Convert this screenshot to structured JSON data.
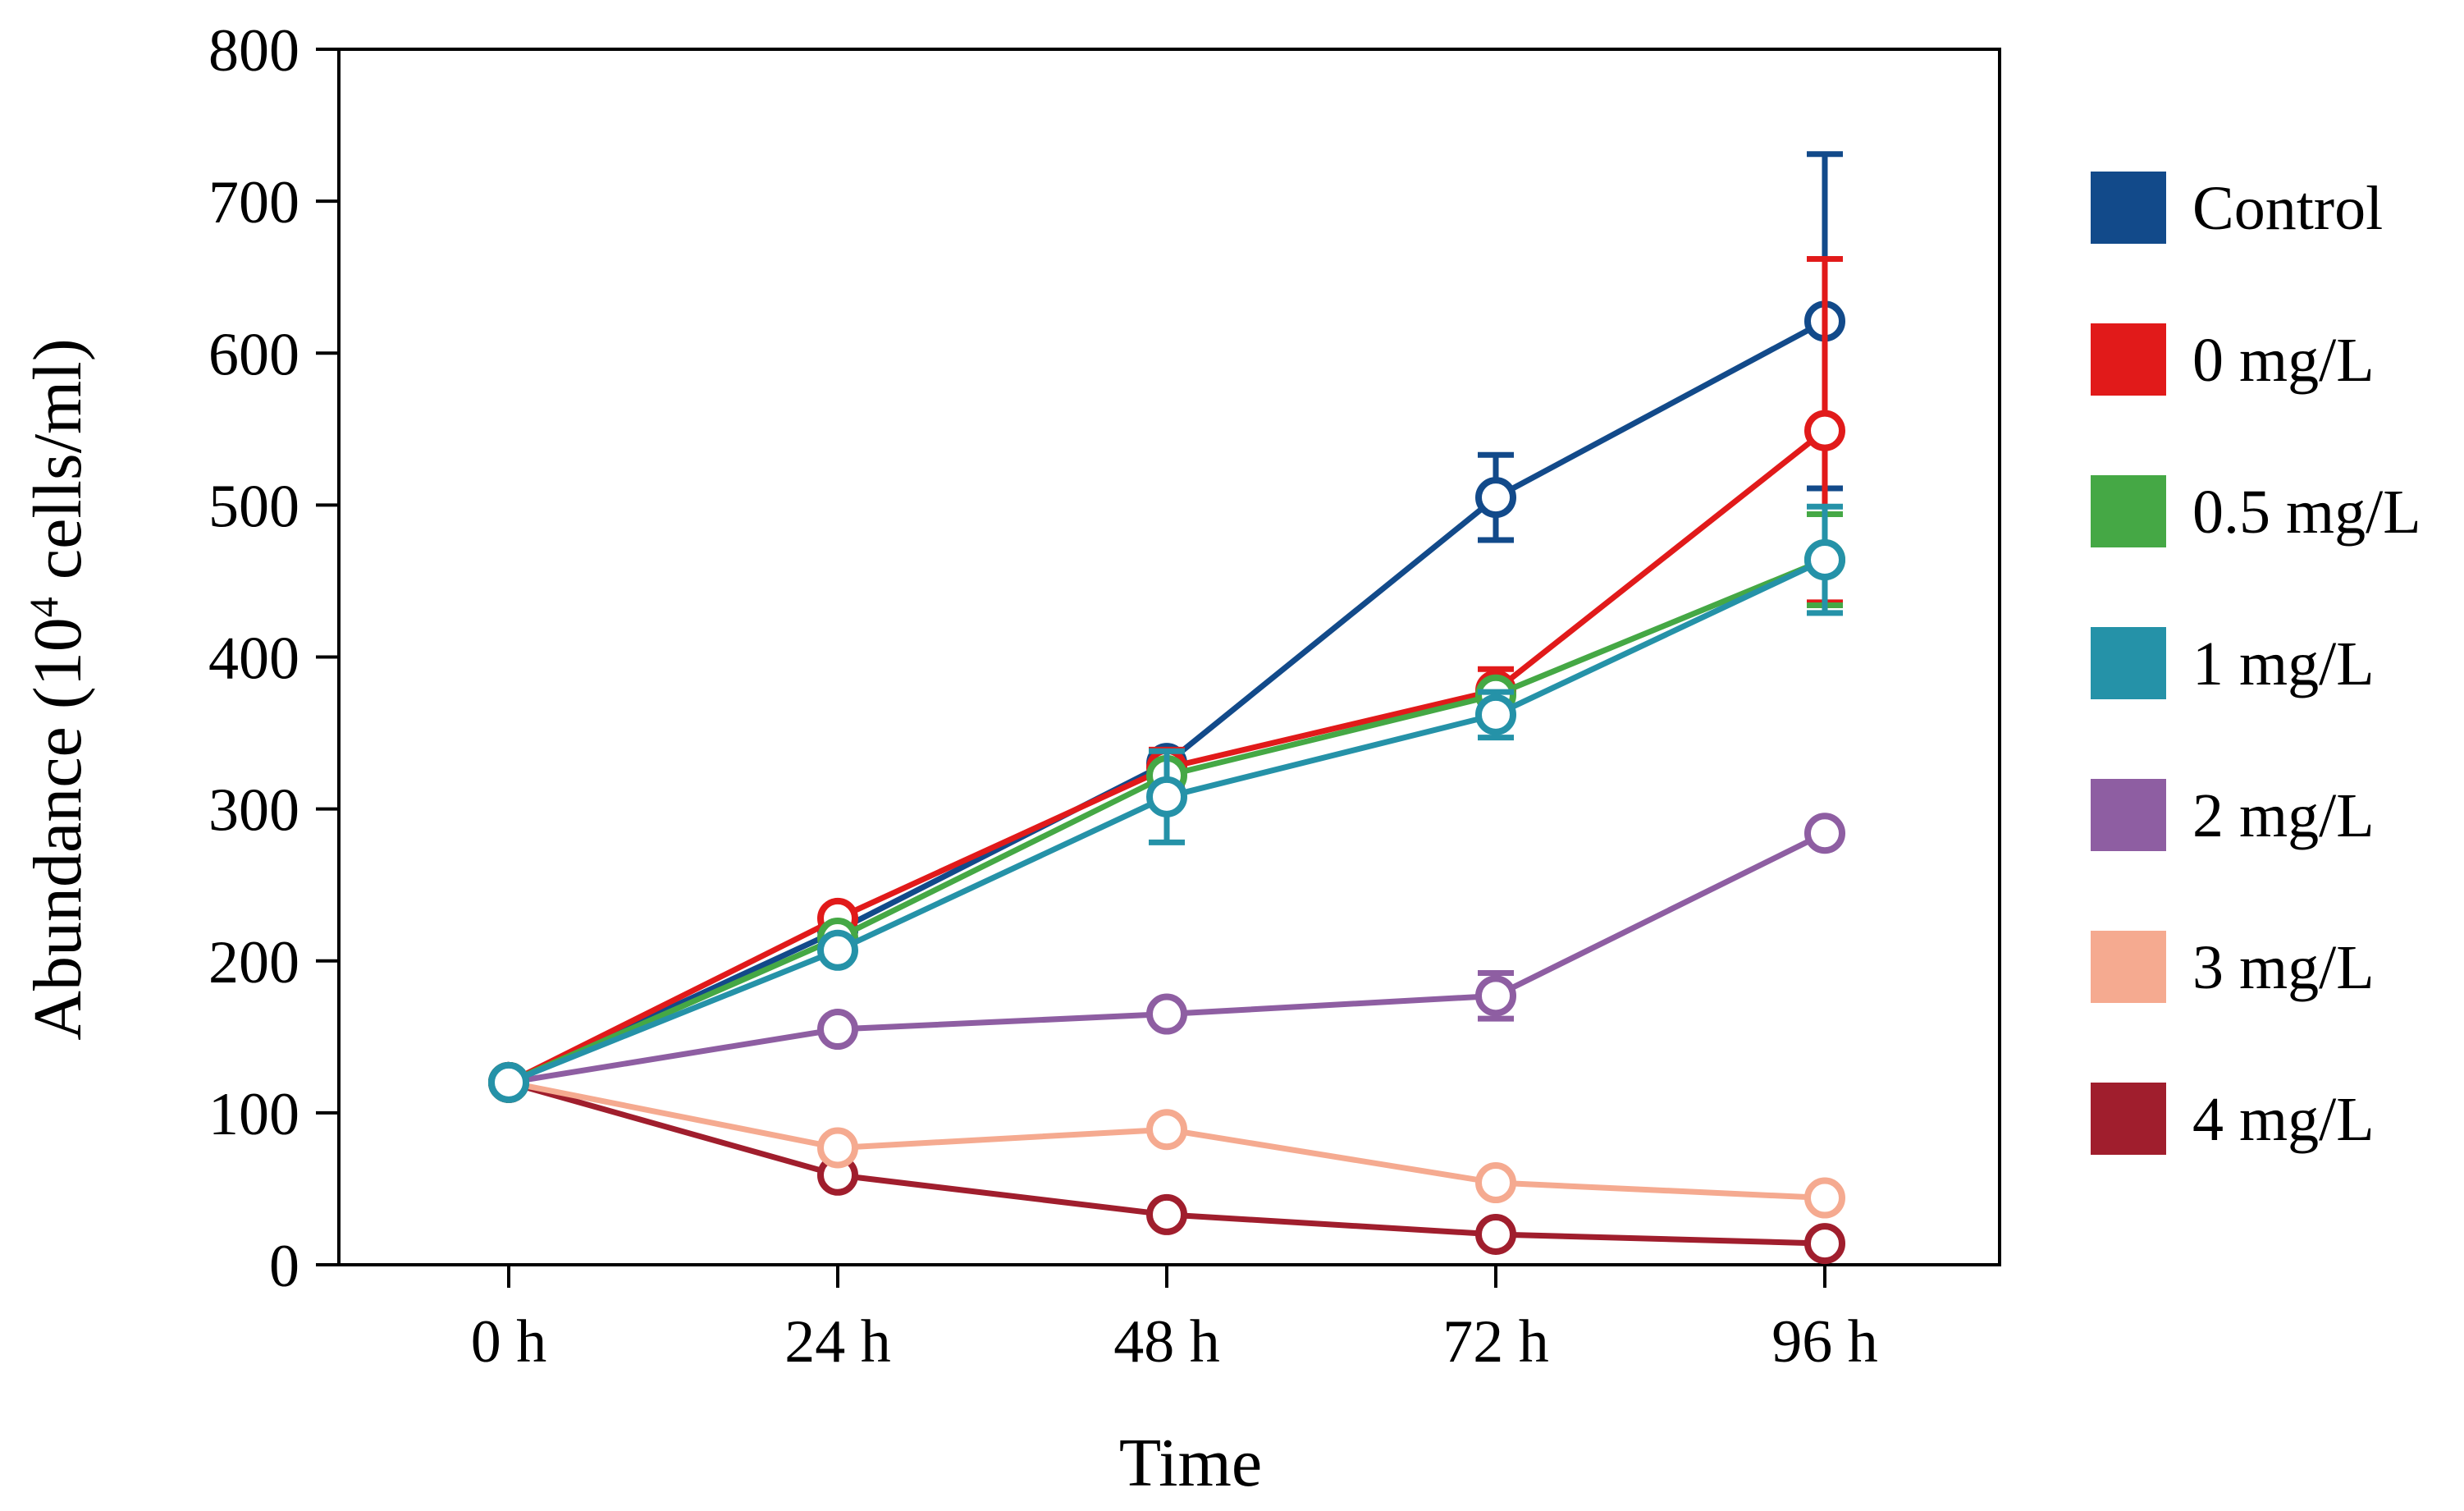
{
  "chart_data": {
    "type": "line",
    "title": "",
    "xlabel": "Time",
    "ylabel": {
      "prefix": "Abundance (10",
      "superscript": "4",
      "suffix": " cells/ml)"
    },
    "categories": [
      "0 h",
      "24 h",
      "48 h",
      "72 h",
      "96 h"
    ],
    "ylim": [
      0,
      800
    ],
    "yticks": [
      "0",
      "100",
      "200",
      "300",
      "400",
      "500",
      "600",
      "700",
      "800"
    ],
    "grid": false,
    "legend_position": "right",
    "series": [
      {
        "name": "Control",
        "color": "#124A8A",
        "values": [
          120,
          220,
          330,
          505,
          621
        ],
        "errors": [
          0,
          0,
          0,
          28,
          110
        ]
      },
      {
        "name": "0 mg/L",
        "color": "#E11A1A",
        "values": [
          120,
          228,
          327,
          378,
          549
        ],
        "errors": [
          0,
          0,
          12,
          14,
          113
        ]
      },
      {
        "name": "0.5 mg/L",
        "color": "#45A845",
        "values": [
          120,
          215,
          322,
          375,
          464
        ],
        "errors": [
          0,
          0,
          0,
          0,
          30
        ]
      },
      {
        "name": "1 mg/L",
        "color": "#2592A8",
        "values": [
          120,
          207,
          308,
          362,
          464
        ],
        "errors": [
          0,
          0,
          30,
          15,
          35
        ]
      },
      {
        "name": "2 mg/L",
        "color": "#8E5EA2",
        "values": [
          120,
          155,
          165,
          177,
          284
        ],
        "errors": [
          0,
          0,
          0,
          15,
          0
        ]
      },
      {
        "name": "3 mg/L",
        "color": "#F5AA90",
        "values": [
          120,
          77,
          89,
          54,
          44
        ],
        "errors": [
          0,
          0,
          0,
          0,
          0
        ]
      },
      {
        "name": "4 mg/L",
        "color": "#A01E2D",
        "values": [
          120,
          59,
          33,
          20,
          14
        ],
        "errors": [
          0,
          0,
          0,
          0,
          0
        ]
      }
    ]
  }
}
